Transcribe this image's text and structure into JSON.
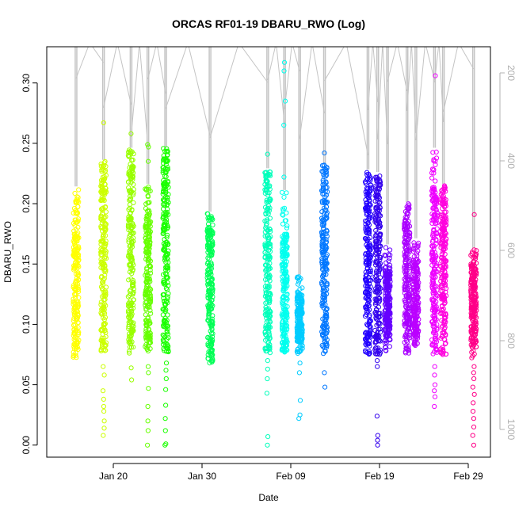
{
  "chart_data": {
    "type": "scatter",
    "title": "ORCAS RF01-19 DBARU_RWO (Log)",
    "xlabel": "Date",
    "ylabel": "DBARU_RWO",
    "ylim": [
      -0.01,
      0.33
    ],
    "xaxis": {
      "tick_labels": [
        "Jan 20",
        "Jan 30",
        "Feb 09",
        "Feb 19",
        "Feb 29"
      ]
    },
    "yaxis": {
      "ticks": [
        0.0,
        0.05,
        0.1,
        0.15,
        0.2,
        0.25,
        0.3
      ],
      "tick_labels": [
        "0.00",
        "0.05",
        "0.10",
        "0.15",
        "0.20",
        "0.25",
        "0.30"
      ]
    },
    "secondary_axis": {
      "side": "right",
      "color": "#b0b0b0",
      "reversed": true,
      "tick_labels": [
        "200",
        "400",
        "600",
        "800",
        "1000"
      ]
    },
    "grid": false,
    "legend": "none",
    "series": [
      {
        "flight_day": 15.8,
        "color": "#ffff00",
        "min": 0.071,
        "q_low": 0.082,
        "q_high": 0.195,
        "max": 0.213,
        "outliers": []
      },
      {
        "flight_day": 18.9,
        "color": "#ccff00",
        "min": 0.078,
        "q_low": 0.085,
        "q_high": 0.225,
        "max": 0.235,
        "outliers": [
          0.267,
          0.065,
          0.058,
          0.045,
          0.038,
          0.032,
          0.028,
          0.02,
          0.014,
          0.008
        ]
      },
      {
        "flight_day": 22.0,
        "color": "#99ff00",
        "min": 0.075,
        "q_low": 0.09,
        "q_high": 0.235,
        "max": 0.245,
        "outliers": [
          0.258,
          0.064,
          0.054
        ]
      },
      {
        "flight_day": 23.9,
        "color": "#66ff00",
        "min": 0.077,
        "q_low": 0.088,
        "q_high": 0.195,
        "max": 0.215,
        "outliers": [
          0.249,
          0.247,
          0.235,
          0.065,
          0.06,
          0.047,
          0.032,
          0.02,
          0.012,
          0.0
        ]
      },
      {
        "flight_day": 25.9,
        "color": "#1aff00",
        "min": 0.077,
        "q_low": 0.085,
        "q_high": 0.236,
        "max": 0.246,
        "outliers": [
          0.068,
          0.062,
          0.055,
          0.046,
          0.033,
          0.022,
          0.012,
          0.001,
          0.0
        ]
      },
      {
        "flight_day": 30.9,
        "color": "#00ff55",
        "min": 0.068,
        "q_low": 0.075,
        "q_high": 0.18,
        "max": 0.192,
        "outliers": []
      },
      {
        "flight_day": 37.4,
        "color": "#00ffbb",
        "min": 0.076,
        "q_low": 0.085,
        "q_high": 0.222,
        "max": 0.228,
        "outliers": [
          0.241,
          0.07,
          0.063,
          0.055,
          0.043,
          0.007,
          0.0
        ]
      },
      {
        "flight_day": 39.3,
        "color": "#00ffee",
        "min": 0.076,
        "q_low": 0.08,
        "q_high": 0.175,
        "max": 0.21,
        "outliers": [
          0.317,
          0.31,
          0.285,
          0.265,
          0.222
        ]
      },
      {
        "flight_day": 41.0,
        "color": "#00ccff",
        "min": 0.075,
        "q_low": 0.085,
        "q_high": 0.125,
        "max": 0.14,
        "outliers": [
          0.068,
          0.06,
          0.037,
          0.025,
          0.022
        ]
      },
      {
        "flight_day": 43.8,
        "color": "#0077ff",
        "min": 0.075,
        "q_low": 0.088,
        "q_high": 0.226,
        "max": 0.232,
        "outliers": [
          0.242,
          0.06,
          0.048
        ]
      },
      {
        "flight_day": 48.7,
        "color": "#2200ff",
        "min": 0.075,
        "q_low": 0.085,
        "q_high": 0.215,
        "max": 0.227,
        "outliers": []
      },
      {
        "flight_day": 49.8,
        "color": "#3300ee",
        "min": 0.075,
        "q_low": 0.085,
        "q_high": 0.215,
        "max": 0.225,
        "outliers": [
          0.07,
          0.065,
          0.024,
          0.008,
          0.004,
          0.0
        ]
      },
      {
        "flight_day": 50.9,
        "color": "#6600ff",
        "min": 0.078,
        "q_low": 0.09,
        "q_high": 0.145,
        "max": 0.165,
        "outliers": []
      },
      {
        "flight_day": 53.1,
        "color": "#aa00ff",
        "min": 0.075,
        "q_low": 0.088,
        "q_high": 0.19,
        "max": 0.2,
        "outliers": []
      },
      {
        "flight_day": 54.1,
        "color": "#bb00ff",
        "min": 0.082,
        "q_low": 0.09,
        "q_high": 0.155,
        "max": 0.17,
        "outliers": []
      },
      {
        "flight_day": 56.2,
        "color": "#ee00ff",
        "min": 0.075,
        "q_low": 0.085,
        "q_high": 0.215,
        "max": 0.245,
        "outliers": [
          0.306,
          0.065,
          0.058,
          0.05,
          0.045,
          0.04,
          0.032
        ]
      },
      {
        "flight_day": 57.2,
        "color": "#ff00dd",
        "min": 0.075,
        "q_low": 0.085,
        "q_high": 0.205,
        "max": 0.215,
        "outliers": []
      },
      {
        "flight_day": 60.6,
        "color": "#ff0088",
        "min": 0.072,
        "q_low": 0.085,
        "q_high": 0.15,
        "max": 0.162,
        "outliers": [
          0.191,
          0.065,
          0.06,
          0.055,
          0.048,
          0.042,
          0.035,
          0.028,
          0.022,
          0.015,
          0.008,
          0.0
        ]
      }
    ]
  }
}
